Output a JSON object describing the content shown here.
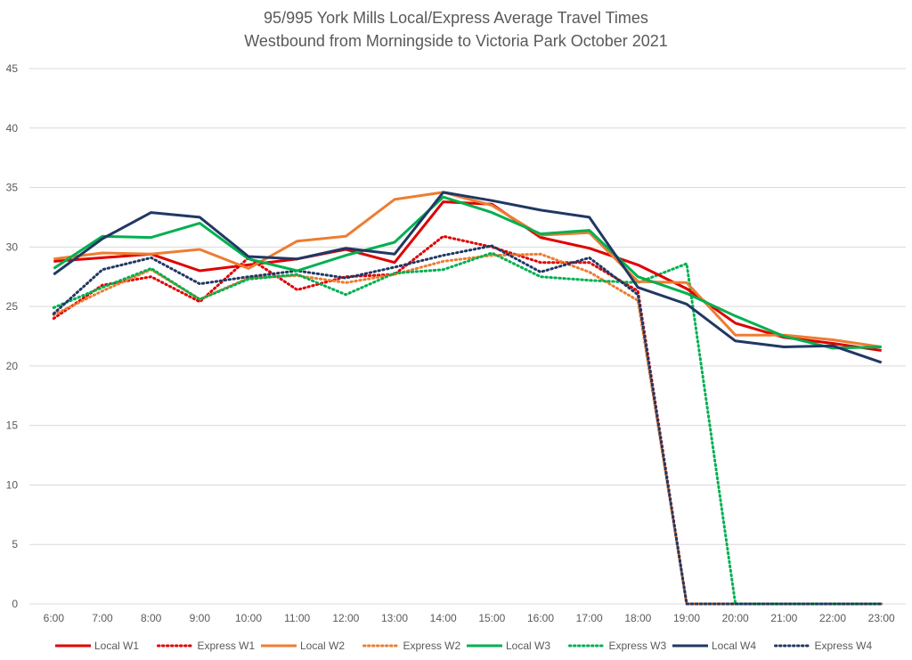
{
  "chart_data": {
    "type": "line",
    "title": "95/995 York Mills Local/Express Average Travel Times",
    "subtitle": "Westbound from Morningside to Victoria Park October 2021",
    "xlabel": "",
    "ylabel": "",
    "ylim": [
      0,
      45
    ],
    "yticks": [
      0,
      5,
      10,
      15,
      20,
      25,
      30,
      35,
      40,
      45
    ],
    "grid": true,
    "legend_position": "bottom",
    "categories": [
      "6:00",
      "7:00",
      "8:00",
      "9:00",
      "10:00",
      "11:00",
      "12:00",
      "13:00",
      "14:00",
      "15:00",
      "16:00",
      "17:00",
      "18:00",
      "19:00",
      "20:00",
      "21:00",
      "22:00",
      "23:00"
    ],
    "series": [
      {
        "name": "Local W1",
        "color": "#e00000",
        "style": "solid",
        "values": [
          28.8,
          29.1,
          29.4,
          28.0,
          28.5,
          29.0,
          29.8,
          28.7,
          33.8,
          33.6,
          30.8,
          29.9,
          28.5,
          26.5,
          23.6,
          22.4,
          21.9,
          21.3
        ]
      },
      {
        "name": "Express W1",
        "color": "#e00000",
        "style": "dotted",
        "values": [
          24.0,
          26.8,
          27.5,
          25.4,
          29.1,
          26.4,
          27.5,
          27.7,
          30.9,
          30.0,
          28.7,
          28.7,
          26.3,
          0,
          0,
          0,
          0,
          0
        ]
      },
      {
        "name": "Local W2",
        "color": "#ed7d31",
        "style": "solid",
        "values": [
          29.0,
          29.5,
          29.4,
          29.8,
          28.2,
          30.5,
          30.9,
          34.0,
          34.6,
          33.5,
          31.0,
          31.2,
          27.1,
          27.0,
          22.6,
          22.6,
          22.2,
          21.6
        ]
      },
      {
        "name": "Express W2",
        "color": "#ed7d31",
        "style": "dotted",
        "values": [
          24.3,
          26.3,
          28.1,
          25.6,
          27.4,
          27.6,
          27.0,
          27.7,
          28.8,
          29.3,
          29.4,
          27.9,
          25.5,
          0,
          0,
          0,
          0,
          0
        ]
      },
      {
        "name": "Local W3",
        "color": "#00b050",
        "style": "solid",
        "values": [
          28.2,
          30.9,
          30.8,
          32.0,
          29.0,
          28.0,
          29.3,
          30.4,
          34.2,
          32.9,
          31.1,
          31.4,
          27.5,
          26.1,
          24.2,
          22.5,
          21.5,
          21.6
        ]
      },
      {
        "name": "Express W3",
        "color": "#00b050",
        "style": "dotted",
        "values": [
          24.9,
          26.6,
          28.2,
          25.6,
          27.3,
          27.7,
          26.0,
          27.8,
          28.1,
          29.5,
          27.5,
          27.2,
          27.0,
          28.6,
          0,
          0,
          0,
          0
        ]
      },
      {
        "name": "Local W4",
        "color": "#203864",
        "style": "solid",
        "values": [
          27.7,
          30.7,
          32.9,
          32.5,
          29.2,
          29.0,
          29.9,
          29.4,
          34.6,
          33.9,
          33.1,
          32.5,
          26.6,
          25.2,
          22.1,
          21.6,
          21.7,
          20.3
        ]
      },
      {
        "name": "Express W4",
        "color": "#203864",
        "style": "dotted",
        "values": [
          24.4,
          28.1,
          29.1,
          26.9,
          27.5,
          28.0,
          27.4,
          28.3,
          29.3,
          30.1,
          27.9,
          29.1,
          26.0,
          0,
          0,
          0,
          0,
          0
        ]
      }
    ]
  }
}
